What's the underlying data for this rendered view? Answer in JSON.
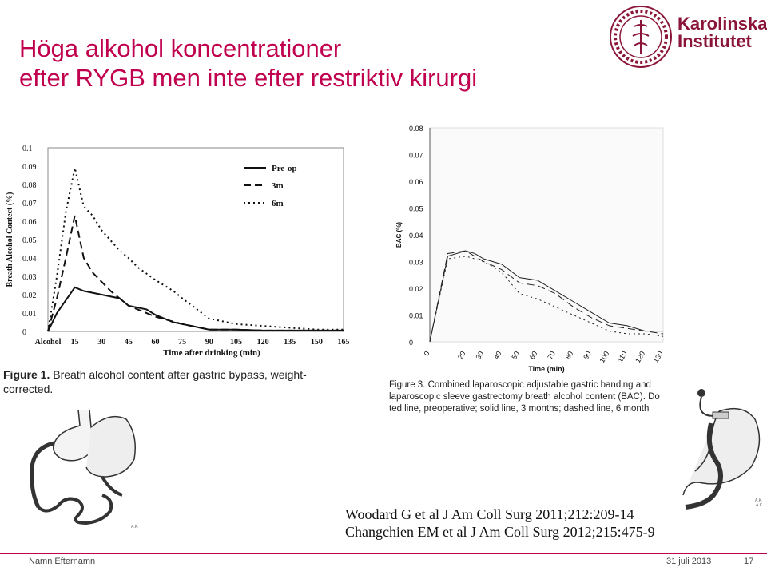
{
  "slide": {
    "title_line1": "Höga alkohol koncentrationer",
    "title_line2": "efter RYGB men inte efter restriktiv kirurgi",
    "logo": {
      "ring_text": "KAROLINSKA INSTITUTET ANNO 1810",
      "wordmark_line1": "Karolinska",
      "wordmark_line2": "Institutet",
      "color": "#8a1538"
    },
    "accent_color": "#c0004e",
    "figure1_caption_label": "Figure 1.",
    "figure1_caption_text": " Breath alcohol content after gastric bypass, weight-corrected.",
    "figure3_caption_line1": "Figure 3. Combined laparoscopic adjustable gastric banding and",
    "figure3_caption_line2": "laparoscopic sleeve gastrectomy breath alcohol content (BAC). Do",
    "figure3_caption_line3": "ted line, preoperative; solid line, 3 months; dashed line, 6 month",
    "reference1": "Woodard G et al J Am Coll Surg 2011;212:209-14",
    "reference2": "Changchien EM et al J Am Coll Surg 2012;215:475-9",
    "footer_name": "Namn Efternamn",
    "footer_date": "31 juli 2013",
    "footer_page": "17",
    "drawing_marks": [
      "A.K.",
      "A.K.",
      "A.K."
    ]
  },
  "chart_data": [
    {
      "type": "line",
      "title": "",
      "xlabel": "Time after drinking (min)",
      "ylabel": "Breath Alcohol Contect (%)",
      "categories": [
        "Alcohol",
        "15",
        "30",
        "45",
        "60",
        "75",
        "90",
        "105",
        "120",
        "135",
        "150",
        "165"
      ],
      "x": [
        0,
        15,
        30,
        45,
        60,
        75,
        90,
        105,
        120,
        135,
        150,
        165
      ],
      "xlim": [
        0,
        165
      ],
      "ylim": [
        0,
        0.1
      ],
      "yticks": [
        "0",
        "0.01",
        "0.02",
        "0.03",
        "0.04",
        "0.05",
        "0.06",
        "0.07",
        "0.08",
        "0.09",
        "0.1"
      ],
      "legend_position": "top-right",
      "series": [
        {
          "name": "Pre-op",
          "style": "solid",
          "x": [
            0,
            5,
            10,
            15,
            20,
            30,
            40,
            45,
            55,
            60,
            70,
            75,
            85,
            90,
            105,
            120,
            135,
            150,
            165
          ],
          "values": [
            0,
            0.01,
            0.017,
            0.024,
            0.022,
            0.02,
            0.018,
            0.014,
            0.012,
            0.009,
            0.005,
            0.004,
            0.002,
            0.001,
            0.001,
            0.0005,
            0.0005,
            0.0005,
            0.0005
          ]
        },
        {
          "name": "3m",
          "style": "dashed",
          "x": [
            0,
            5,
            10,
            15,
            20,
            25,
            35,
            45,
            60,
            75,
            90,
            105,
            120,
            135,
            150,
            165
          ],
          "values": [
            0,
            0.018,
            0.04,
            0.063,
            0.04,
            0.032,
            0.022,
            0.014,
            0.008,
            0.004,
            0.001,
            0.001,
            0.0005,
            0.0005,
            0.0005,
            0.0005
          ]
        },
        {
          "name": "6m",
          "style": "dotted",
          "x": [
            0,
            5,
            10,
            15,
            20,
            25,
            30,
            40,
            45,
            50,
            60,
            70,
            75,
            90,
            105,
            120,
            135,
            150,
            165
          ],
          "values": [
            0,
            0.03,
            0.065,
            0.089,
            0.068,
            0.063,
            0.055,
            0.044,
            0.04,
            0.035,
            0.028,
            0.022,
            0.018,
            0.007,
            0.004,
            0.003,
            0.002,
            0.001,
            0.001
          ]
        }
      ]
    },
    {
      "type": "line",
      "title": "",
      "xlabel": "Time (min)",
      "ylabel": "BAC (%)",
      "categories": [
        "0",
        "20",
        "30",
        "40",
        "50",
        "60",
        "70",
        "80",
        "90",
        "100",
        "110",
        "120",
        "130"
      ],
      "x": [
        0,
        20,
        30,
        40,
        50,
        60,
        70,
        80,
        90,
        100,
        110,
        120,
        130
      ],
      "xlim": [
        0,
        130
      ],
      "ylim": [
        0,
        0.08
      ],
      "yticks": [
        "0",
        "0.01",
        "0.02",
        "0.03",
        "0.04",
        "0.05",
        "0.06",
        "0.07",
        "0.08"
      ],
      "legend_position": "none",
      "series": [
        {
          "style": "solid",
          "x": [
            0,
            10,
            20,
            25,
            30,
            40,
            50,
            60,
            70,
            80,
            90,
            100,
            110,
            120,
            130
          ],
          "values": [
            0,
            0.032,
            0.034,
            0.033,
            0.031,
            0.029,
            0.024,
            0.023,
            0.019,
            0.015,
            0.011,
            0.007,
            0.006,
            0.004,
            0.004
          ]
        },
        {
          "style": "dashed",
          "x": [
            0,
            10,
            20,
            25,
            30,
            40,
            50,
            60,
            70,
            80,
            90,
            100,
            110,
            120,
            130
          ],
          "values": [
            0,
            0.033,
            0.034,
            0.032,
            0.03,
            0.027,
            0.022,
            0.021,
            0.018,
            0.013,
            0.009,
            0.006,
            0.005,
            0.004,
            0.003
          ]
        },
        {
          "style": "dotted",
          "x": [
            0,
            10,
            20,
            25,
            30,
            40,
            50,
            60,
            70,
            80,
            90,
            100,
            110,
            120,
            130
          ],
          "values": [
            0,
            0.031,
            0.032,
            0.031,
            0.03,
            0.026,
            0.018,
            0.016,
            0.013,
            0.01,
            0.007,
            0.004,
            0.003,
            0.003,
            0.002
          ]
        }
      ]
    }
  ]
}
